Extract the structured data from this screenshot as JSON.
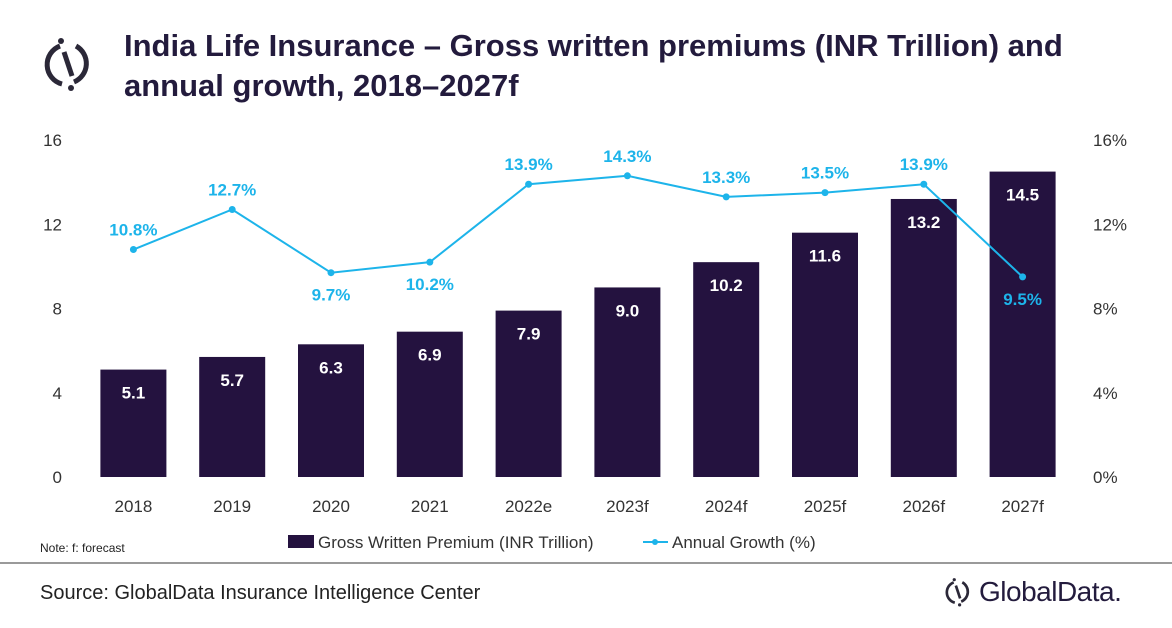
{
  "title": "India Life Insurance – Gross written premiums (INR Trillion) and annual growth, 2018–2027f",
  "note": "Note: f: forecast",
  "source": "Source: GlobalData Insurance Intelligence Center",
  "brand": "GlobalData.",
  "colors": {
    "bar": "#24123f",
    "line": "#1db4ea",
    "title": "#231b3d"
  },
  "chart_data": {
    "type": "bar+line",
    "categories": [
      "2018",
      "2019",
      "2020",
      "2021",
      "2022e",
      "2023f",
      "2024f",
      "2025f",
      "2026f",
      "2027f"
    ],
    "series": [
      {
        "name": "Gross Written Premium (INR Trillion)",
        "type": "bar",
        "axis": "left",
        "values": [
          5.1,
          5.7,
          6.3,
          6.9,
          7.9,
          9.0,
          10.2,
          11.6,
          13.2,
          14.5
        ],
        "labels": [
          "5.1",
          "5.7",
          "6.3",
          "6.9",
          "7.9",
          "9.0",
          "10.2",
          "11.6",
          "13.2",
          "14.5"
        ]
      },
      {
        "name": "Annual Growth (%)",
        "type": "line",
        "axis": "right",
        "values": [
          10.8,
          12.7,
          9.7,
          10.2,
          13.9,
          14.3,
          13.3,
          13.5,
          13.9,
          9.5
        ],
        "labels": [
          "10.8%",
          "12.7%",
          "9.7%",
          "10.2%",
          "13.9%",
          "14.3%",
          "13.3%",
          "13.5%",
          "13.9%",
          "9.5%"
        ]
      }
    ],
    "ylim": [
      0,
      16
    ],
    "yticks": [
      "0",
      "4",
      "8",
      "12",
      "16"
    ],
    "y2lim": [
      0,
      16
    ],
    "y2ticks": [
      "0%",
      "4%",
      "8%",
      "12%",
      "16%"
    ],
    "legend": "bottom",
    "grid": false
  }
}
